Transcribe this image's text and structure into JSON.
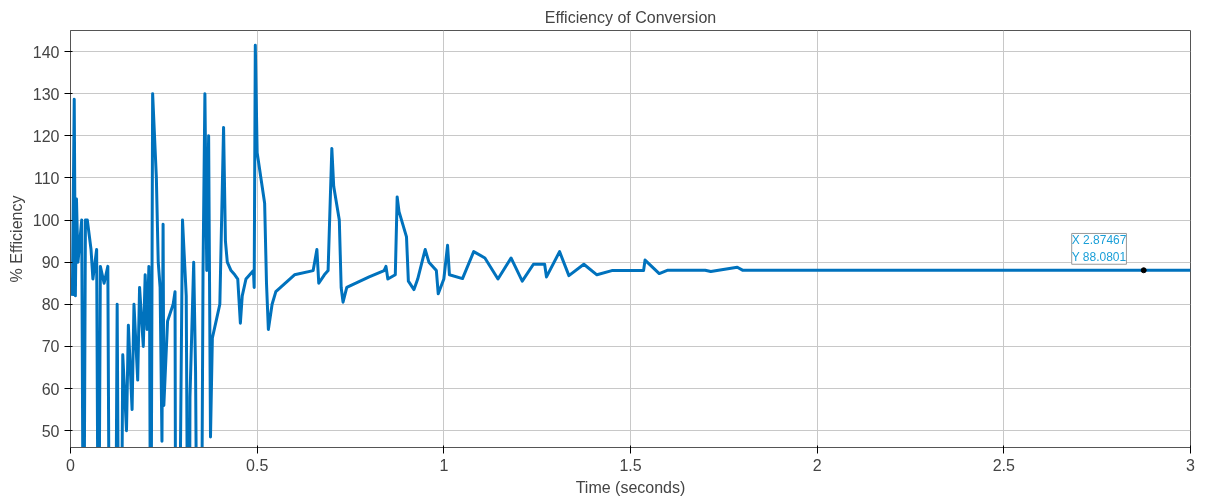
{
  "chart_data": {
    "type": "line",
    "title": "Efficiency of Conversion",
    "xlabel": "Time (seconds)",
    "ylabel": "% Efficiency",
    "xlim": [
      0,
      3
    ],
    "ylim": [
      46,
      145
    ],
    "xticks": [
      0,
      0.5,
      1,
      1.5,
      2,
      2.5,
      3
    ],
    "yticks": [
      50,
      60,
      70,
      80,
      90,
      100,
      110,
      120,
      130,
      140
    ],
    "grid": true,
    "marker": "none",
    "line_style": "solid",
    "annotations": [
      {
        "text": "X 2.87467\nY 88.0801",
        "x": 2.87467,
        "y": 88.0801
      }
    ],
    "series": [
      {
        "color": "#0072bd",
        "x": [
          0.005,
          0.01,
          0.013,
          0.016,
          0.02,
          0.03,
          0.035,
          0.04,
          0.045,
          0.055,
          0.06,
          0.07,
          0.075,
          0.08,
          0.09,
          0.1,
          0.105,
          0.11,
          0.115,
          0.12,
          0.125,
          0.13,
          0.135,
          0.14,
          0.15,
          0.155,
          0.165,
          0.17,
          0.18,
          0.185,
          0.195,
          0.2,
          0.205,
          0.21,
          0.212,
          0.215,
          0.22,
          0.23,
          0.235,
          0.24,
          0.245,
          0.248,
          0.25,
          0.26,
          0.275,
          0.28,
          0.282,
          0.29,
          0.3,
          0.31,
          0.315,
          0.318,
          0.32,
          0.33,
          0.335,
          0.34,
          0.35,
          0.355,
          0.36,
          0.365,
          0.37,
          0.375,
          0.38,
          0.39,
          0.4,
          0.41,
          0.415,
          0.42,
          0.43,
          0.44,
          0.448,
          0.455,
          0.46,
          0.47,
          0.49,
          0.492,
          0.495,
          0.5,
          0.51,
          0.52,
          0.525,
          0.53,
          0.54,
          0.55,
          0.6,
          0.65,
          0.66,
          0.665,
          0.68,
          0.69,
          0.7,
          0.705,
          0.72,
          0.725,
          0.73,
          0.74,
          0.8,
          0.84,
          0.845,
          0.85,
          0.87,
          0.875,
          0.88,
          0.9,
          0.905,
          0.92,
          0.93,
          0.95,
          0.96,
          0.98,
          0.985,
          1.0,
          1.01,
          1.015,
          1.05,
          1.08,
          1.11,
          1.145,
          1.18,
          1.21,
          1.24,
          1.27,
          1.275,
          1.31,
          1.335,
          1.375,
          1.41,
          1.45,
          1.535,
          1.539,
          1.577,
          1.6,
          1.7,
          1.715,
          1.786,
          1.8,
          2.0,
          2.5,
          2.87467,
          3.0
        ],
        "values": [
          82,
          128.7,
          82,
          105,
          90,
          100,
          null,
          100,
          100,
          93,
          86,
          93,
          null,
          89,
          85,
          89,
          null,
          null,
          null,
          null,
          80,
          null,
          null,
          68,
          50,
          75,
          55,
          80,
          62,
          84,
          70,
          87,
          74,
          89,
          74,
          null,
          130,
          110,
          90,
          84,
          47.5,
          99,
          56,
          76,
          80,
          83,
          null,
          null,
          100,
          82,
          null,
          null,
          58,
          90,
          64,
          null,
          null,
          88,
          130,
          88,
          120,
          48.5,
          72,
          76,
          80,
          122,
          95,
          90,
          88,
          87,
          86,
          75.5,
          82,
          86,
          88,
          84,
          141.5,
          116,
          110,
          104,
          85,
          74,
          80,
          83,
          87,
          88,
          93,
          85,
          87,
          88,
          117,
          108,
          100,
          84,
          80.5,
          84,
          86.5,
          88,
          89,
          86,
          87,
          105.5,
          102,
          96,
          85.5,
          83.5,
          86,
          93,
          90,
          88,
          82.5,
          86,
          94,
          87,
          86.1,
          92.5,
          91,
          86,
          91,
          85.5,
          89.5,
          89.5,
          86.5,
          92.5,
          86.8,
          89.5,
          87,
          88,
          88,
          90.5,
          87.3,
          88.1,
          88.1,
          87.8,
          88.8,
          88.1,
          88.1,
          88.1,
          88.1,
          88.1
        ]
      }
    ]
  }
}
